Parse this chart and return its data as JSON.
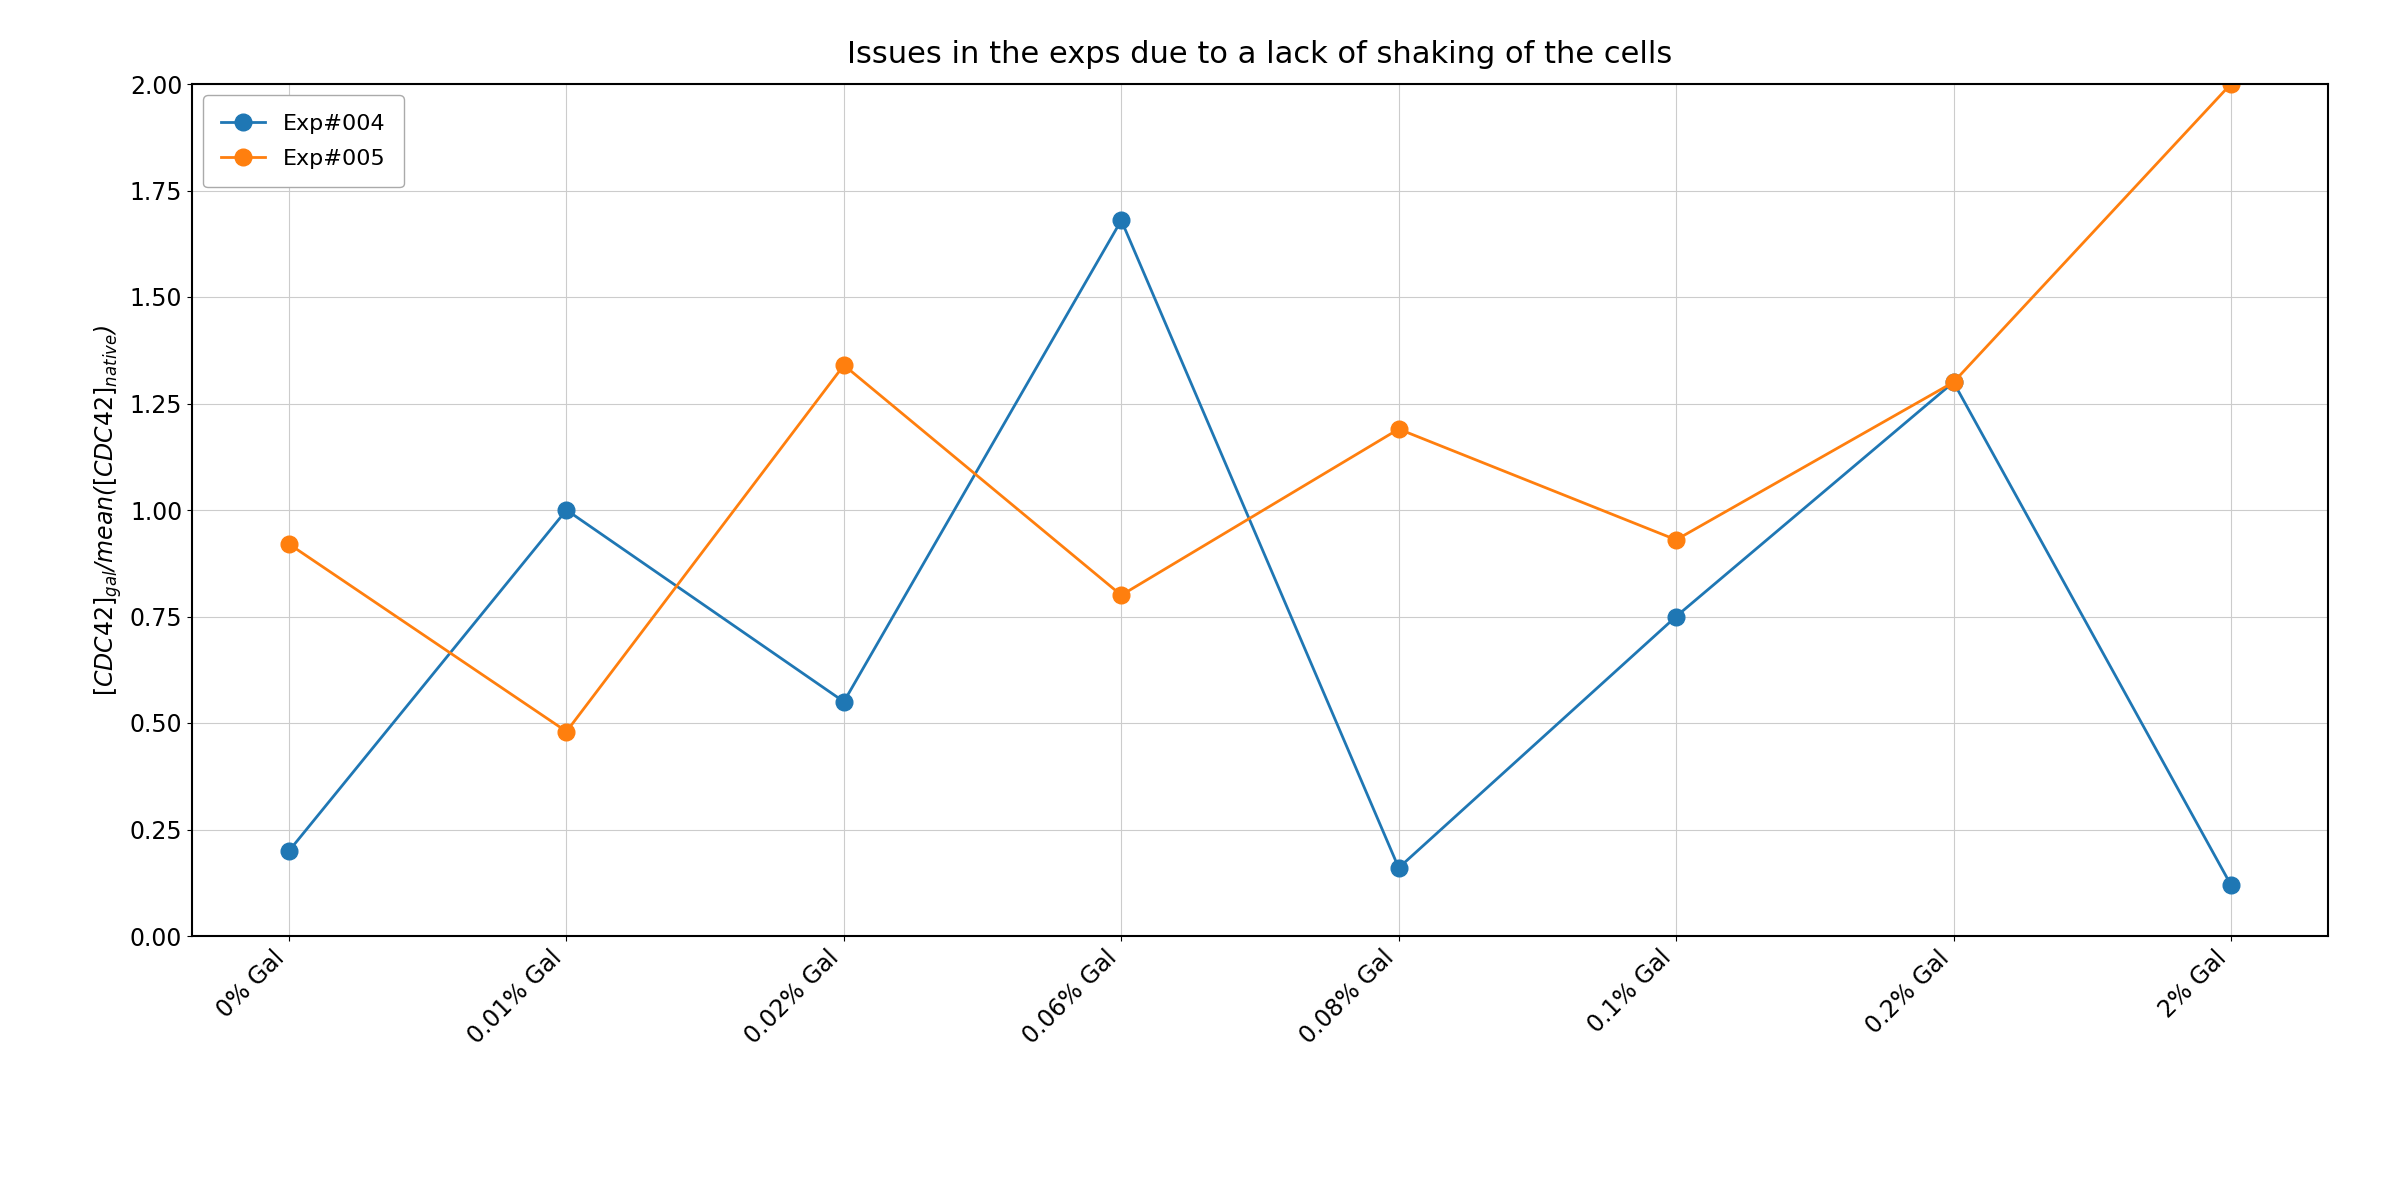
{
  "title": "Issues in the exps due to a lack of shaking of the cells",
  "ylabel_sub1": "gal",
  "ylabel_sub2": "native",
  "ylabel_suffix": ")",
  "categories": [
    "0% Gal",
    "0.01% Gal",
    "0.02% Gal",
    "0.06% Gal",
    "0.08% Gal",
    "0.1% Gal",
    "0.2% Gal",
    "2% Gal"
  ],
  "exp004_values": [
    0.2,
    1.0,
    0.55,
    1.68,
    0.16,
    0.75,
    1.3,
    0.12
  ],
  "exp005_values": [
    0.92,
    0.48,
    1.34,
    0.8,
    1.19,
    0.93,
    1.3,
    2.0
  ],
  "exp004_color": "#1f77b4",
  "exp005_color": "#ff7f0e",
  "ylim": [
    0.0,
    2.0
  ],
  "yticks": [
    0.0,
    0.25,
    0.5,
    0.75,
    1.0,
    1.25,
    1.5,
    1.75,
    2.0
  ],
  "legend_labels": [
    "Exp#004",
    "Exp#005"
  ],
  "marker": "o",
  "markersize": 12,
  "linewidth": 2.0,
  "title_fontsize": 22,
  "label_fontsize": 17,
  "tick_fontsize": 17,
  "legend_fontsize": 16,
  "background_color": "#ffffff",
  "grid_color": "#cccccc",
  "figwidth": 24.0,
  "figheight": 12.0,
  "dpi": 100
}
